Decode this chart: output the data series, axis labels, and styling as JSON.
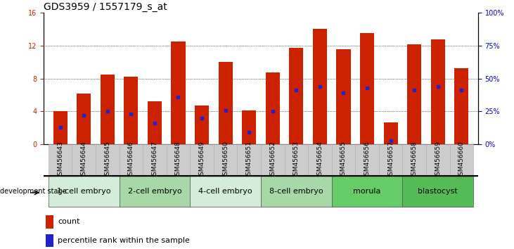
{
  "title": "GDS3959 / 1557179_s_at",
  "samples": [
    "GSM456643",
    "GSM456644",
    "GSM456645",
    "GSM456646",
    "GSM456647",
    "GSM456648",
    "GSM456649",
    "GSM456650",
    "GSM456651",
    "GSM456652",
    "GSM456653",
    "GSM456654",
    "GSM456655",
    "GSM456656",
    "GSM456657",
    "GSM456658",
    "GSM456659",
    "GSM456660"
  ],
  "counts": [
    4.0,
    6.2,
    8.5,
    8.2,
    5.2,
    12.5,
    4.7,
    10.0,
    4.1,
    8.7,
    11.7,
    14.0,
    11.5,
    13.5,
    2.7,
    12.1,
    12.7,
    9.2
  ],
  "percentile_ranks": [
    13.0,
    22.0,
    25.0,
    23.0,
    16.0,
    36.0,
    20.0,
    26.0,
    9.0,
    25.0,
    41.0,
    44.0,
    39.0,
    43.0,
    3.0,
    41.0,
    44.0,
    41.0
  ],
  "bar_color": "#cc2200",
  "marker_color": "#2222cc",
  "ylim_left": [
    0,
    16
  ],
  "ylim_right": [
    0,
    100
  ],
  "yticks_left": [
    0,
    4,
    8,
    12,
    16
  ],
  "yticks_right": [
    0,
    25,
    50,
    75,
    100
  ],
  "ytick_labels_right": [
    "0%",
    "25%",
    "50%",
    "75%",
    "100%"
  ],
  "groups": [
    {
      "label": "1-cell embryo",
      "start": 0,
      "end": 3,
      "color": "#d4edda"
    },
    {
      "label": "2-cell embryo",
      "start": 3,
      "end": 6,
      "color": "#a8d8a8"
    },
    {
      "label": "4-cell embryo",
      "start": 6,
      "end": 9,
      "color": "#d4edda"
    },
    {
      "label": "8-cell embryo",
      "start": 9,
      "end": 12,
      "color": "#a8d8a8"
    },
    {
      "label": "morula",
      "start": 12,
      "end": 15,
      "color": "#66cc66"
    },
    {
      "label": "blastocyst",
      "start": 15,
      "end": 18,
      "color": "#55bb55"
    }
  ],
  "bar_width": 0.6,
  "left_axis_color": "#cc2200",
  "right_axis_color": "#0000cc",
  "title_fontsize": 10,
  "tick_fontsize": 7,
  "sample_tick_fontsize": 6.5,
  "group_label_fontsize": 8,
  "stage_label": "development stage",
  "legend_count_label": "count",
  "legend_pct_label": "percentile rank within the sample",
  "gray_band_color": "#cccccc",
  "gray_band_edge": "#aaaaaa"
}
